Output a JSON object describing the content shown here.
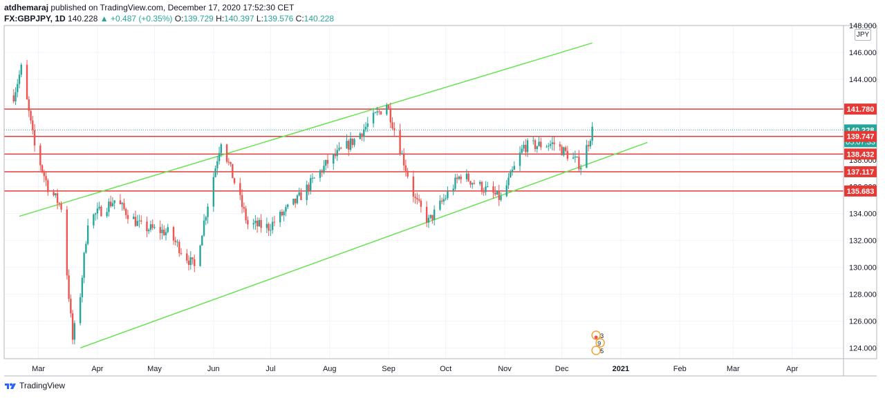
{
  "header": {
    "author": "atdhemaraj",
    "published": " published on TradingView.com, December 17, 2020 17:52:30 CET"
  },
  "quote": {
    "symbol": "FX:GBPJPY, 1D",
    "last": "140.228",
    "change": "+0.487 (+0.35%)",
    "o_label": "O:",
    "o": "139.729",
    "h_label": "H:",
    "h": "140.397",
    "l_label": "L:",
    "l": "139.576",
    "c_label": "C:",
    "c": "140.228"
  },
  "footer": {
    "brand": "TradingView"
  },
  "chart_data": {
    "type": "candlestick",
    "symbol": "FX:GBPJPY",
    "interval": "1D",
    "unit": "JPY",
    "ylim": [
      123.2,
      148.0
    ],
    "y_ticks": [
      124,
      126,
      128,
      130,
      132,
      134,
      136,
      138,
      140,
      142,
      144,
      146,
      148
    ],
    "y_tick_labels": [
      "124.000",
      "126.000",
      "128.000",
      "130.000",
      "132.000",
      "134.000",
      "136.000",
      "138.000",
      "140.000",
      "142.000",
      "144.000",
      "146.000",
      "148.000"
    ],
    "x_tick_labels": [
      "Mar",
      "Apr",
      "May",
      "Jun",
      "Jul",
      "Aug",
      "Sep",
      "Oct",
      "Nov",
      "Dec",
      "2021",
      "Feb",
      "Mar",
      "Apr"
    ],
    "x_tick_dates": [
      "2020-03-01",
      "2020-04-01",
      "2020-05-01",
      "2020-06-01",
      "2020-07-01",
      "2020-08-01",
      "2020-09-01",
      "2020-10-01",
      "2020-11-01",
      "2020-12-01",
      "2021-01-01",
      "2021-02-01",
      "2021-03-01",
      "2021-04-01"
    ],
    "horizontal_levels": [
      {
        "price": 141.78,
        "label": "141.780"
      },
      {
        "price": 139.747,
        "label": "139.747"
      },
      {
        "price": 138.432,
        "label": "138.432"
      },
      {
        "price": 137.117,
        "label": "137.117"
      },
      {
        "price": 135.683,
        "label": "135.683"
      }
    ],
    "last_price": {
      "price": 140.228,
      "label": "140.228",
      "countdown": "05:07:33"
    },
    "channel_upper": [
      {
        "date": "2020-02-20",
        "price": 133.8
      },
      {
        "date": "2020-12-17",
        "price": 146.7
      }
    ],
    "channel_lower": [
      {
        "date": "2020-03-23",
        "price": 124.0
      },
      {
        "date": "2021-01-15",
        "price": 139.3
      }
    ],
    "closes": [
      {
        "date": "2020-02-17",
        "close": 142.8
      },
      {
        "date": "2020-02-21",
        "close": 144.8
      },
      {
        "date": "2020-02-28",
        "close": 139.0
      },
      {
        "date": "2020-03-06",
        "close": 136.0
      },
      {
        "date": "2020-03-13",
        "close": 134.5
      },
      {
        "date": "2020-03-19",
        "close": 124.6
      },
      {
        "date": "2020-03-23",
        "close": 128.0
      },
      {
        "date": "2020-03-27",
        "close": 133.5
      },
      {
        "date": "2020-04-10",
        "close": 135.0
      },
      {
        "date": "2020-04-24",
        "close": 133.0
      },
      {
        "date": "2020-05-08",
        "close": 132.6
      },
      {
        "date": "2020-05-22",
        "close": 130.0
      },
      {
        "date": "2020-06-05",
        "close": 139.5
      },
      {
        "date": "2020-06-19",
        "close": 133.2
      },
      {
        "date": "2020-06-30",
        "close": 133.0
      },
      {
        "date": "2020-07-15",
        "close": 135.0
      },
      {
        "date": "2020-07-31",
        "close": 137.8
      },
      {
        "date": "2020-08-14",
        "close": 139.5
      },
      {
        "date": "2020-08-31",
        "close": 142.2
      },
      {
        "date": "2020-09-15",
        "close": 135.0
      },
      {
        "date": "2020-09-22",
        "close": 133.4
      },
      {
        "date": "2020-10-09",
        "close": 136.9
      },
      {
        "date": "2020-10-30",
        "close": 135.1
      },
      {
        "date": "2020-11-11",
        "close": 139.0
      },
      {
        "date": "2020-11-27",
        "close": 139.2
      },
      {
        "date": "2020-12-11",
        "close": 137.6
      },
      {
        "date": "2020-12-17",
        "close": 140.228
      }
    ]
  },
  "colors": {
    "up": "#26a69a",
    "down": "#ef5350",
    "level_line": "#e53935",
    "channel": "#66e34f",
    "last_price_bg": "#26a69a",
    "grid": "#f0f3fa",
    "axis_text": "#131722"
  },
  "markers": {
    "earnings_icons": [
      "3",
      "9",
      "5"
    ]
  }
}
